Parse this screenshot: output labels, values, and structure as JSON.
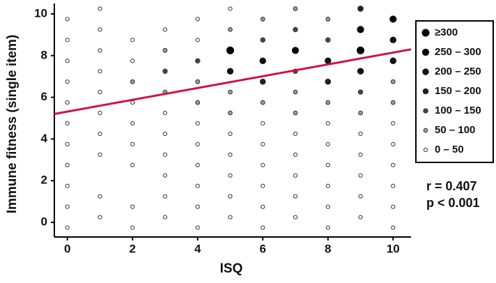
{
  "chart_data": {
    "type": "scatter",
    "x_label": "ISQ",
    "y_label": "Immune fitness (single item)",
    "xlim": [
      -0.4,
      10.55
    ],
    "ylim": [
      -0.7,
      10.5
    ],
    "xticks": [
      0,
      2,
      4,
      6,
      8,
      10
    ],
    "yticks": [
      0,
      2,
      4,
      6,
      8,
      10
    ],
    "legend_position": "right",
    "series": [
      {
        "name": "≥300",
        "color": "#000000",
        "x": [
          5,
          9
        ],
        "y": [
          8.25,
          8.25
        ]
      },
      {
        "name": "250 – 300",
        "color": "#080808",
        "x": [
          7,
          9,
          10
        ],
        "y": [
          8.25,
          9.25,
          9.75
        ]
      },
      {
        "name": "200 – 250",
        "color": "#111111",
        "x": [
          5,
          6,
          8,
          9,
          10,
          10
        ],
        "y": [
          7.25,
          7.75,
          7.75,
          7.25,
          8.75,
          7.75
        ]
      },
      {
        "name": "150 – 200",
        "color": "#222222",
        "x": [
          6,
          8,
          9
        ],
        "y": [
          6.75,
          6.75,
          10.25
        ]
      },
      {
        "name": "100 – 150",
        "color": "#444444",
        "x": [
          3,
          4,
          6,
          7,
          7,
          8,
          9
        ],
        "y": [
          7.25,
          7.75,
          8.75,
          9.25,
          7.25,
          8.75,
          6.25
        ]
      },
      {
        "name": "50 – 100",
        "color": "#9a9a9a",
        "x": [
          2,
          3,
          3,
          4,
          4,
          5,
          5,
          5,
          6,
          6,
          7,
          7,
          7,
          8,
          8,
          9,
          10,
          10
        ],
        "y": [
          6.75,
          8.25,
          6.25,
          6.75,
          5.75,
          9.25,
          6.25,
          5.25,
          9.75,
          5.75,
          10.25,
          6.25,
          5.25,
          9.75,
          5.75,
          5.25,
          6.75,
          5.75
        ]
      },
      {
        "name": "0 – 50",
        "color": "#ffffff",
        "x": [
          0,
          0,
          0,
          0,
          0,
          0,
          0,
          0,
          0,
          0,
          0,
          1,
          1,
          1,
          1,
          1,
          1,
          1,
          1,
          1,
          1,
          2,
          2,
          2,
          2,
          2,
          2,
          2,
          2,
          3,
          3,
          3,
          3,
          3,
          3,
          3,
          4,
          4,
          4,
          4,
          4,
          4,
          4,
          4,
          5,
          5,
          5,
          5,
          5,
          5,
          6,
          6,
          6,
          6,
          6,
          6,
          7,
          7,
          7,
          7,
          7,
          8,
          8,
          8,
          8,
          8,
          8,
          9,
          9,
          9,
          9,
          9,
          10,
          10,
          10,
          10,
          10,
          10
        ],
        "y": [
          9.75,
          8.75,
          7.75,
          6.75,
          5.75,
          4.75,
          3.75,
          2.75,
          1.75,
          0.75,
          -0.25,
          10.25,
          9.25,
          8.25,
          7.25,
          6.25,
          5.25,
          4.25,
          3.25,
          1.25,
          0.25,
          8.75,
          7.75,
          5.75,
          4.75,
          3.75,
          2.75,
          0.75,
          -0.25,
          9.25,
          5.25,
          4.25,
          3.25,
          2.25,
          1.25,
          0.25,
          9.75,
          8.75,
          4.75,
          3.75,
          2.75,
          1.75,
          0.75,
          -0.25,
          10.25,
          4.25,
          3.25,
          2.25,
          1.25,
          0.25,
          4.75,
          3.75,
          2.75,
          1.75,
          0.75,
          -0.25,
          4.25,
          3.25,
          2.25,
          1.25,
          0.25,
          4.75,
          3.75,
          2.75,
          1.75,
          0.75,
          -0.25,
          4.25,
          3.25,
          2.25,
          1.25,
          0.25,
          4.75,
          3.75,
          2.75,
          1.75,
          0.75,
          -0.25
        ]
      }
    ],
    "trendline": {
      "color": "#d2103c",
      "x": [
        -0.4,
        10.55
      ],
      "y": [
        5.2,
        8.3
      ]
    },
    "annotations": [
      "r = 0.407",
      "p < 0.001"
    ]
  }
}
